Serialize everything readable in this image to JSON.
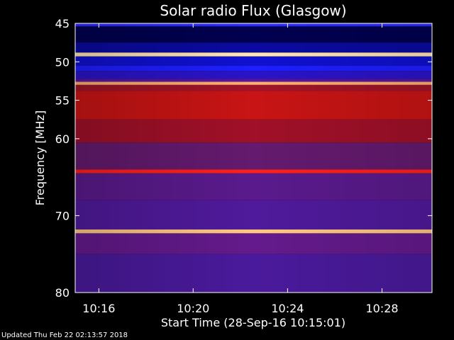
{
  "chart_data": {
    "type": "heatmap",
    "title": "Solar radio Flux (Glasgow)",
    "xlabel": "Start Time (28-Sep-16 10:15:01)",
    "ylabel": "Frequency [MHz]",
    "ylim": [
      45,
      80
    ],
    "y_inverted": true,
    "x_range_minutes": [
      10.25,
      10.502
    ],
    "y_ticks": [
      {
        "value": 45,
        "label": "45"
      },
      {
        "value": 50,
        "label": "50"
      },
      {
        "value": 55,
        "label": "55"
      },
      {
        "value": 60,
        "label": "60"
      },
      {
        "value": 70,
        "label": "70"
      },
      {
        "value": 80,
        "label": "80"
      }
    ],
    "x_ticks": [
      {
        "value": 10.2667,
        "label": "10:16"
      },
      {
        "value": 10.3333,
        "label": "10:20"
      },
      {
        "value": 10.4,
        "label": "10:24"
      },
      {
        "value": 10.4667,
        "label": "10:28"
      }
    ],
    "colors": {
      "background": "#000000",
      "low": "#000046",
      "blue": "#1a1aff",
      "purple": "#5a1a9c",
      "red": "#c81414",
      "bright": "#ffd28c"
    },
    "bands": [
      {
        "from": 45.0,
        "to": 45.4,
        "color": "#2a2aff"
      },
      {
        "from": 45.4,
        "to": 47.5,
        "color": "#000050"
      },
      {
        "from": 47.5,
        "to": 48.8,
        "color": "#0a0aa0"
      },
      {
        "from": 48.8,
        "to": 49.3,
        "color": "#ffe6b4"
      },
      {
        "from": 49.3,
        "to": 50.5,
        "color": "#1010d0"
      },
      {
        "from": 50.5,
        "to": 51.2,
        "color": "#1e1eff"
      },
      {
        "from": 51.2,
        "to": 52.2,
        "color": "#2a14c8"
      },
      {
        "from": 52.2,
        "to": 52.6,
        "color": "#5a14a0"
      },
      {
        "from": 52.6,
        "to": 53.0,
        "color": "#ffb070"
      },
      {
        "from": 53.0,
        "to": 53.8,
        "color": "#a01428"
      },
      {
        "from": 53.8,
        "to": 57.5,
        "color": "#c81414"
      },
      {
        "from": 57.5,
        "to": 60.5,
        "color": "#a01028"
      },
      {
        "from": 60.5,
        "to": 64.0,
        "color": "#641a6e"
      },
      {
        "from": 64.0,
        "to": 64.5,
        "color": "#ff2020"
      },
      {
        "from": 64.5,
        "to": 68.0,
        "color": "#5a1a8c"
      },
      {
        "from": 68.0,
        "to": 71.8,
        "color": "#501a9c"
      },
      {
        "from": 71.8,
        "to": 72.3,
        "color": "#ffc882"
      },
      {
        "from": 72.3,
        "to": 75.0,
        "color": "#641a8c"
      },
      {
        "from": 75.0,
        "to": 80.0,
        "color": "#4a1a9c"
      }
    ]
  },
  "footer": {
    "updated": "Updated Thu Feb 22 02:13:57 2018"
  }
}
